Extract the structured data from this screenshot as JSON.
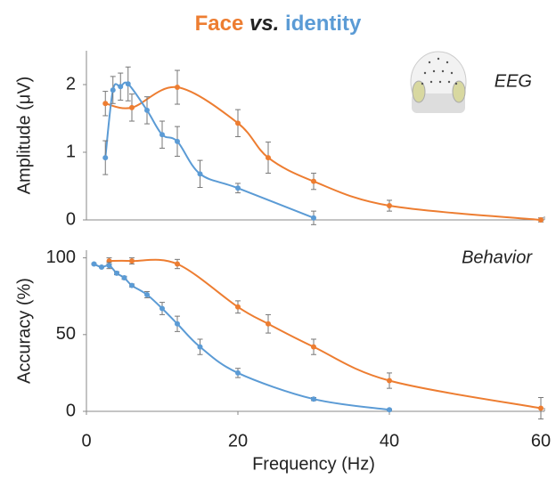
{
  "title": [
    {
      "text": "Face",
      "color": "#ed7d31",
      "italic": false
    },
    {
      "text": "vs.",
      "color": "#222222",
      "italic": true
    },
    {
      "text": "identity",
      "color": "#5b9bd5",
      "italic": false
    }
  ],
  "chart_data": [
    {
      "type": "line",
      "annotation": "EEG",
      "y_label": "Amplitude (μV)",
      "xlim": [
        0,
        60
      ],
      "ylim": [
        0,
        2.5
      ],
      "yticks": [
        0,
        1,
        2
      ],
      "series": [
        {
          "name": "Face",
          "color": "#ed7d31",
          "x": [
            2.5,
            6,
            12,
            20,
            24,
            30,
            40,
            60
          ],
          "values": [
            1.72,
            1.66,
            1.96,
            1.43,
            0.92,
            0.57,
            0.21,
            0.0
          ],
          "errors": [
            0.18,
            0.2,
            0.25,
            0.2,
            0.23,
            0.12,
            0.08,
            0.03
          ]
        },
        {
          "name": "identity",
          "color": "#5b9bd5",
          "x": [
            2.5,
            3.5,
            4.5,
            5.5,
            8,
            10,
            12,
            15,
            20,
            30
          ],
          "values": [
            0.92,
            1.92,
            1.97,
            2.01,
            1.62,
            1.26,
            1.16,
            0.68,
            0.47,
            0.03
          ],
          "errors": [
            0.25,
            0.2,
            0.2,
            0.25,
            0.2,
            0.2,
            0.22,
            0.2,
            0.07,
            0.1
          ]
        }
      ]
    },
    {
      "type": "line",
      "annotation": "Behavior",
      "y_label": "Accuracy (%)",
      "x_label": "Frequency (Hz)",
      "xlim": [
        0,
        60
      ],
      "ylim": [
        0,
        105
      ],
      "xticks": [
        0,
        20,
        40,
        60
      ],
      "yticks": [
        0,
        50,
        100
      ],
      "series": [
        {
          "name": "Face",
          "color": "#ed7d31",
          "x": [
            3,
            6,
            12,
            20,
            24,
            30,
            40,
            60
          ],
          "values": [
            98,
            98,
            96,
            68,
            57,
            42,
            20,
            2
          ],
          "errors": [
            2,
            2,
            3,
            4,
            6,
            5,
            5,
            7
          ]
        },
        {
          "name": "identity",
          "color": "#5b9bd5",
          "x": [
            1,
            2,
            3,
            4,
            5,
            6,
            8,
            10,
            12,
            15,
            20,
            30,
            40
          ],
          "values": [
            96,
            94,
            95,
            90,
            87,
            82,
            76,
            67,
            57,
            42,
            25,
            8,
            1
          ],
          "errors": [
            0.5,
            0.5,
            2,
            1,
            1,
            1,
            2,
            4,
            5,
            5,
            3,
            1,
            0.5
          ]
        }
      ]
    }
  ]
}
